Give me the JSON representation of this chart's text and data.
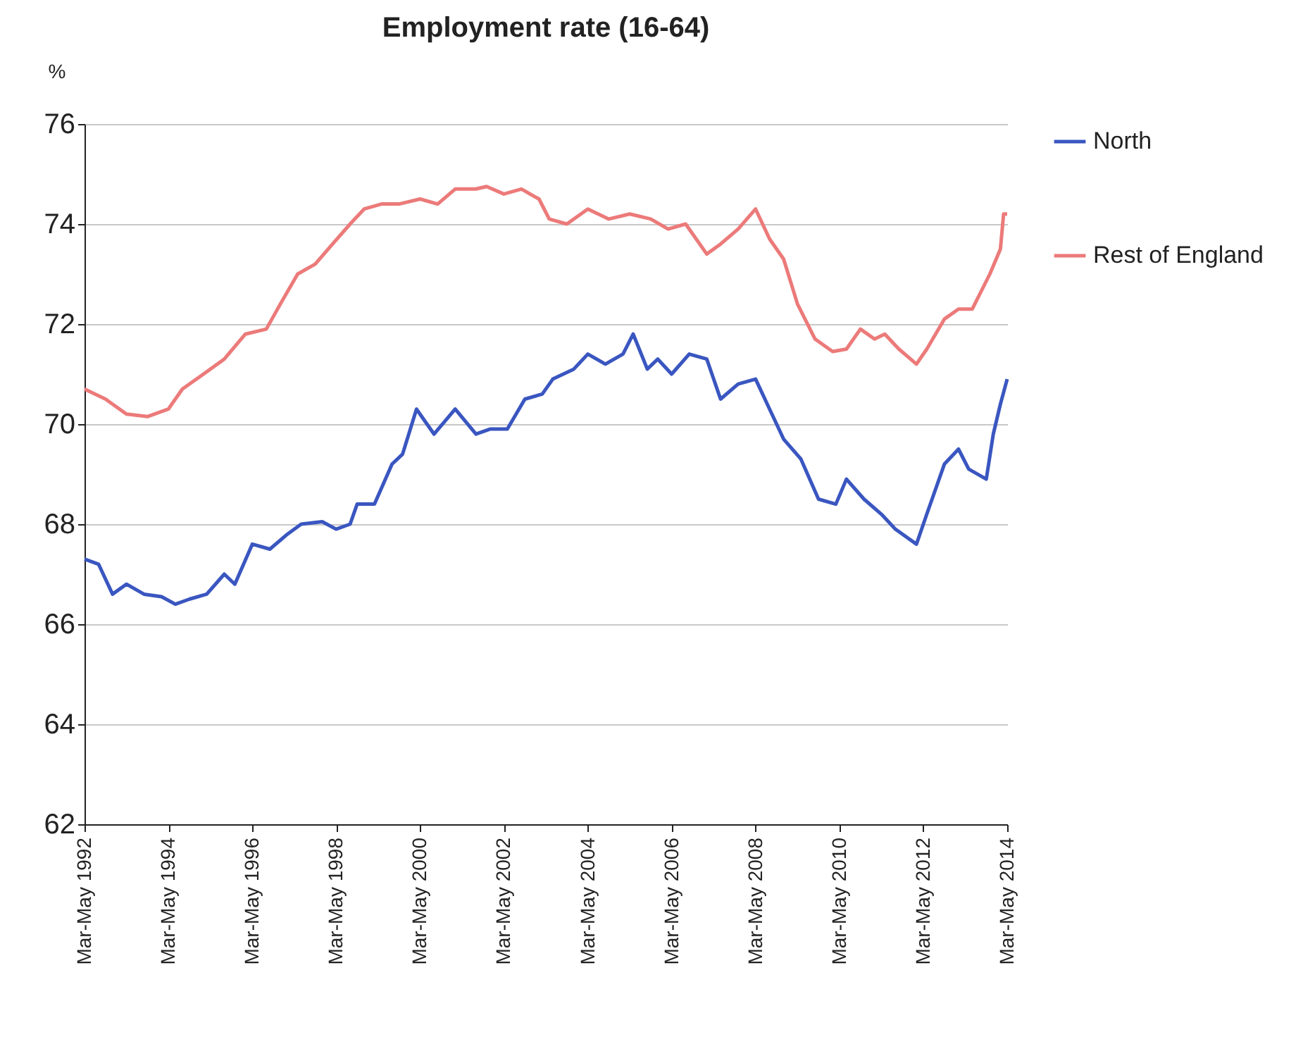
{
  "chart_data": {
    "type": "line",
    "title": "Employment rate (16-64)",
    "ylabel": "%",
    "xlim": [
      "1992-04",
      "2014-04"
    ],
    "xticks": [
      {
        "value": "1992-04",
        "label": "Mar-May 1992"
      },
      {
        "value": "1994-04",
        "label": "Mar-May 1994"
      },
      {
        "value": "1996-04",
        "label": "Mar-May 1996"
      },
      {
        "value": "1998-04",
        "label": "Mar-May 1998"
      },
      {
        "value": "2000-04",
        "label": "Mar-May 2000"
      },
      {
        "value": "2002-04",
        "label": "Mar-May 2002"
      },
      {
        "value": "2004-04",
        "label": "Mar-May 2004"
      },
      {
        "value": "2006-04",
        "label": "Mar-May 2006"
      },
      {
        "value": "2008-04",
        "label": "Mar-May 2008"
      },
      {
        "value": "2010-04",
        "label": "Mar-May 2010"
      },
      {
        "value": "2012-04",
        "label": "Mar-May 2012"
      },
      {
        "value": "2014-04",
        "label": "Mar-May 2014"
      }
    ],
    "ylim": [
      62,
      76
    ],
    "yticks": [
      62,
      64,
      66,
      68,
      70,
      72,
      74,
      76
    ],
    "grid": "y",
    "legend": "right",
    "series": [
      {
        "name": "North",
        "color": "#3a56c0",
        "x": [
          "1992-04",
          "1992-08",
          "1992-12",
          "1993-04",
          "1993-09",
          "1994-02",
          "1994-06",
          "1994-10",
          "1995-03",
          "1995-08",
          "1995-11",
          "1996-04",
          "1996-09",
          "1997-02",
          "1997-06",
          "1997-12",
          "1998-04",
          "1998-08",
          "1998-10",
          "1999-03",
          "1999-08",
          "1999-11",
          "2000-03",
          "2000-08",
          "2001-02",
          "2001-08",
          "2001-12",
          "2002-05",
          "2002-10",
          "2003-03",
          "2003-06",
          "2003-12",
          "2004-04",
          "2004-09",
          "2005-02",
          "2005-05",
          "2005-09",
          "2005-12",
          "2006-04",
          "2006-09",
          "2007-02",
          "2007-06",
          "2007-11",
          "2008-04",
          "2008-08",
          "2008-12",
          "2009-05",
          "2009-10",
          "2010-03",
          "2010-06",
          "2010-11",
          "2011-04",
          "2011-08",
          "2012-02",
          "2012-05",
          "2012-10",
          "2013-02",
          "2013-05",
          "2013-10",
          "2013-12",
          "2014-02",
          "2014-04"
        ],
        "values": [
          67.3,
          67.2,
          66.6,
          66.8,
          66.6,
          66.55,
          66.4,
          66.5,
          66.6,
          67.0,
          66.8,
          67.6,
          67.5,
          67.8,
          68.0,
          68.05,
          67.9,
          68.0,
          68.4,
          68.4,
          69.2,
          69.4,
          70.3,
          69.8,
          70.3,
          69.8,
          69.9,
          69.9,
          70.5,
          70.6,
          70.9,
          71.1,
          71.4,
          71.2,
          71.4,
          71.8,
          71.1,
          71.3,
          71.0,
          71.4,
          71.3,
          70.5,
          70.8,
          70.9,
          70.3,
          69.7,
          69.3,
          68.5,
          68.4,
          68.9,
          68.5,
          68.2,
          67.9,
          67.6,
          68.2,
          69.2,
          69.5,
          69.1,
          68.9,
          69.8,
          70.4,
          70.9
        ]
      },
      {
        "name": "Rest of England",
        "color": "#ec7a7a",
        "x": [
          "1992-04",
          "1992-10",
          "1993-04",
          "1993-10",
          "1994-04",
          "1994-08",
          "1995-02",
          "1995-08",
          "1996-02",
          "1996-08",
          "1996-12",
          "1997-05",
          "1997-10",
          "1998-03",
          "1998-08",
          "1998-12",
          "1999-05",
          "1999-10",
          "2000-04",
          "2000-09",
          "2001-02",
          "2001-08",
          "2001-11",
          "2002-04",
          "2002-09",
          "2003-02",
          "2003-05",
          "2003-10",
          "2004-04",
          "2004-10",
          "2005-04",
          "2005-10",
          "2006-03",
          "2006-08",
          "2007-02",
          "2007-06",
          "2007-11",
          "2008-04",
          "2008-08",
          "2008-12",
          "2009-04",
          "2009-09",
          "2010-02",
          "2010-06",
          "2010-10",
          "2011-02",
          "2011-05",
          "2011-09",
          "2012-02",
          "2012-05",
          "2012-10",
          "2013-02",
          "2013-06",
          "2013-11",
          "2014-02",
          "2014-03",
          "2014-04"
        ],
        "values": [
          70.7,
          70.5,
          70.2,
          70.15,
          70.3,
          70.7,
          71.0,
          71.3,
          71.8,
          71.9,
          72.4,
          73.0,
          73.2,
          73.6,
          74.0,
          74.3,
          74.4,
          74.4,
          74.5,
          74.4,
          74.7,
          74.7,
          74.75,
          74.6,
          74.7,
          74.5,
          74.1,
          74.0,
          74.3,
          74.1,
          74.2,
          74.1,
          73.9,
          74.0,
          73.4,
          73.6,
          73.9,
          74.3,
          73.7,
          73.3,
          72.4,
          71.7,
          71.45,
          71.5,
          71.9,
          71.7,
          71.8,
          71.5,
          71.2,
          71.5,
          72.1,
          72.3,
          72.3,
          73.0,
          73.5,
          74.2,
          74.2
        ]
      }
    ]
  }
}
